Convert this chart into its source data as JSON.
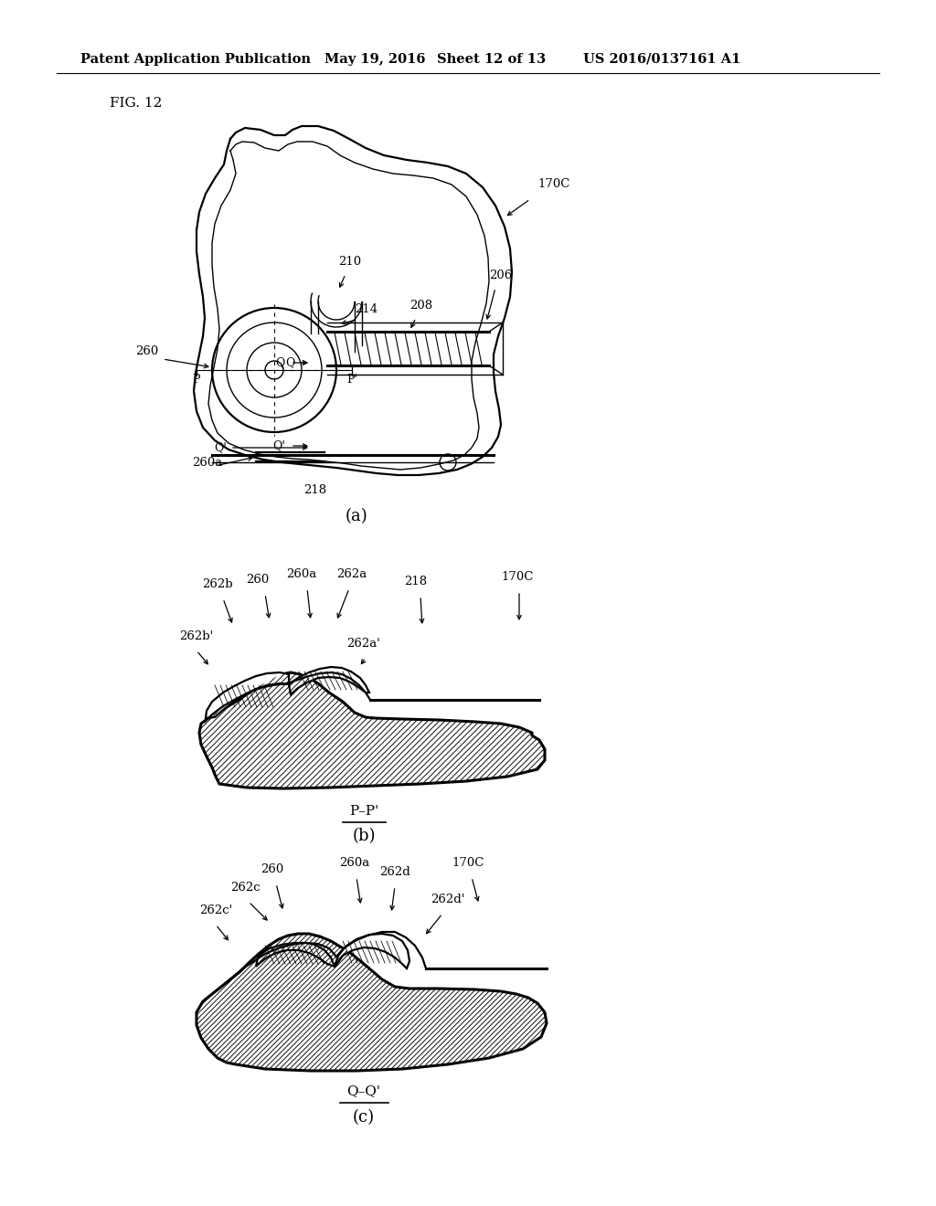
{
  "bg_color": "#ffffff",
  "line_color": "#000000",
  "header_text": "Patent Application Publication",
  "header_date": "May 19, 2016",
  "header_sheet": "Sheet 12 of 13",
  "header_patent": "US 2016/0137161 A1",
  "fig_label": "FIG. 12",
  "sub_a_label": "(a)",
  "sub_b_label": "(b)",
  "sub_c_label": "(c)",
  "pp_label": "P–P'",
  "qq_label": "Q–Q'"
}
